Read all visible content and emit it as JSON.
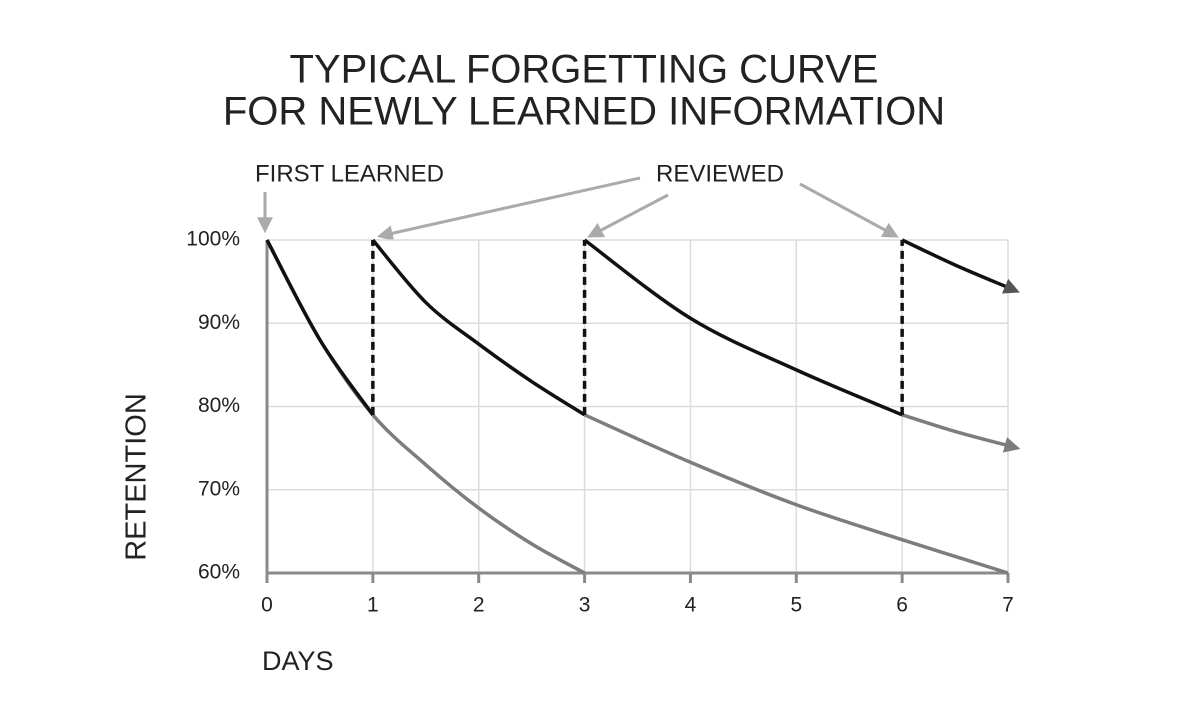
{
  "chart_data": {
    "type": "line",
    "title": [
      "TYPICAL FORGETTING CURVE",
      "FOR NEWLY LEARNED INFORMATION"
    ],
    "annotations": [
      "FIRST LEARNED",
      "REVIEWED"
    ],
    "x_label": "DAYS",
    "y_label": "RETENTION",
    "xlim": [
      0,
      7
    ],
    "xticks": [
      0,
      1,
      2,
      3,
      4,
      5,
      6,
      7
    ],
    "ylim": [
      60,
      100
    ],
    "yticks": [
      {
        "value": 60,
        "label": "60%"
      },
      {
        "value": 70,
        "label": "70%"
      },
      {
        "value": 80,
        "label": "80%"
      },
      {
        "value": 90,
        "label": "90%"
      },
      {
        "value": 100,
        "label": "100%"
      }
    ],
    "grid": true,
    "series": [
      {
        "color": "#7d7d7d",
        "x": [
          0,
          0.5,
          1,
          1.5,
          2,
          2.5,
          3
        ],
        "values": [
          100,
          88,
          79,
          73,
          67.8,
          63.5,
          60
        ]
      },
      {
        "color": "#7d7d7d",
        "x": [
          3,
          4,
          5,
          6,
          7
        ],
        "values": [
          79,
          73.3,
          68.2,
          64,
          60
        ]
      },
      {
        "color": "#7d7d7d",
        "x": [
          6,
          6.5,
          7
        ],
        "values": [
          79,
          77,
          75.3
        ],
        "arrow": true
      },
      {
        "color": "#111111",
        "x": [
          0,
          0.5,
          1
        ],
        "values": [
          100,
          88,
          79
        ]
      },
      {
        "color": "#111111",
        "x": [
          1,
          1.5,
          2,
          2.5,
          3
        ],
        "values": [
          100,
          92.5,
          87.5,
          83,
          79
        ]
      },
      {
        "color": "#111111",
        "x": [
          3,
          4,
          5,
          6
        ],
        "values": [
          100,
          90.6,
          84.4,
          79
        ]
      },
      {
        "color": "#111111",
        "x": [
          6,
          6.5,
          7
        ],
        "values": [
          100,
          97,
          94.3
        ],
        "arrow": true
      },
      {
        "color": "#111111",
        "dashed": true,
        "x": [
          1,
          1,
          1,
          3,
          3,
          3,
          6,
          6
        ],
        "values": [
          79,
          100,
          null,
          79,
          100,
          null,
          79,
          100
        ]
      }
    ]
  }
}
